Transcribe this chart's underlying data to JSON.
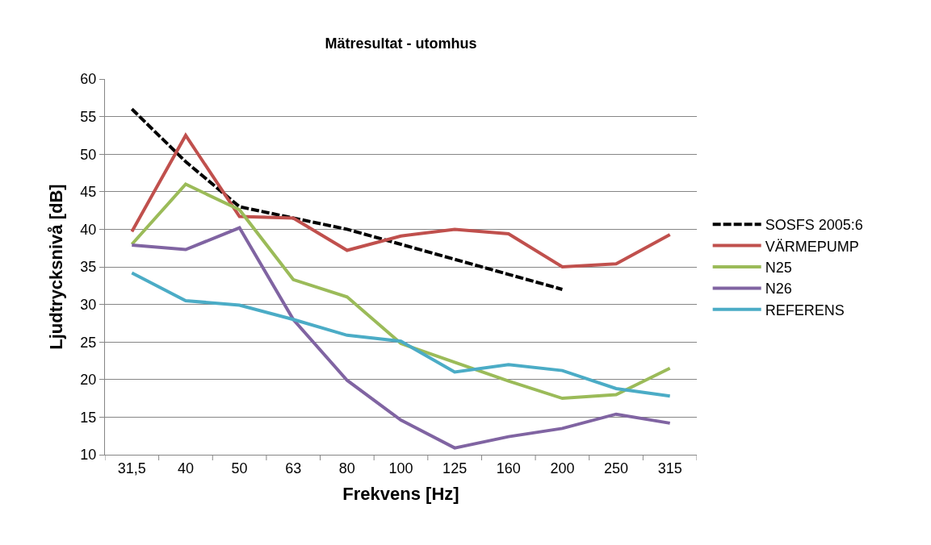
{
  "chart_data": {
    "type": "line",
    "title": "Mätresultat - utomhus",
    "xlabel": "Frekvens [Hz]",
    "ylabel": "Ljudtrycksnivå [dB]",
    "categories": [
      "31,5",
      "40",
      "50",
      "63",
      "80",
      "100",
      "125",
      "160",
      "200",
      "250",
      "315"
    ],
    "ylim": [
      10,
      60
    ],
    "yticks": [
      10,
      15,
      20,
      25,
      30,
      35,
      40,
      45,
      50,
      55,
      60
    ],
    "grid": "y",
    "legend": "right",
    "marker": "none",
    "series": [
      {
        "name": "SOSFS 2005:6",
        "color": "#000000",
        "line_style": "dashed",
        "values": [
          56,
          49,
          43,
          41.5,
          40,
          38,
          36,
          34,
          32,
          null,
          null
        ]
      },
      {
        "name": "VÄRMEPUMP",
        "color": "#c0504d",
        "line_style": "solid",
        "values": [
          39.7,
          52.5,
          41.7,
          41.5,
          37.2,
          39.1,
          40,
          39.4,
          35,
          35.4,
          39.3
        ]
      },
      {
        "name": "N25",
        "color": "#9bbb59",
        "line_style": "solid",
        "values": [
          38,
          46,
          42.6,
          33.3,
          31,
          24.8,
          22.3,
          19.8,
          17.5,
          18,
          21.5
        ]
      },
      {
        "name": "N26",
        "color": "#8064a2",
        "line_style": "solid",
        "values": [
          37.9,
          37.3,
          40.2,
          28,
          19.9,
          14.6,
          10.9,
          12.4,
          13.5,
          15.4,
          14.2
        ]
      },
      {
        "name": "REFERENS",
        "color": "#4bacc6",
        "line_style": "solid",
        "values": [
          34.2,
          30.5,
          29.9,
          28,
          25.9,
          25.1,
          21,
          22,
          21.2,
          18.8,
          17.8
        ]
      }
    ]
  }
}
